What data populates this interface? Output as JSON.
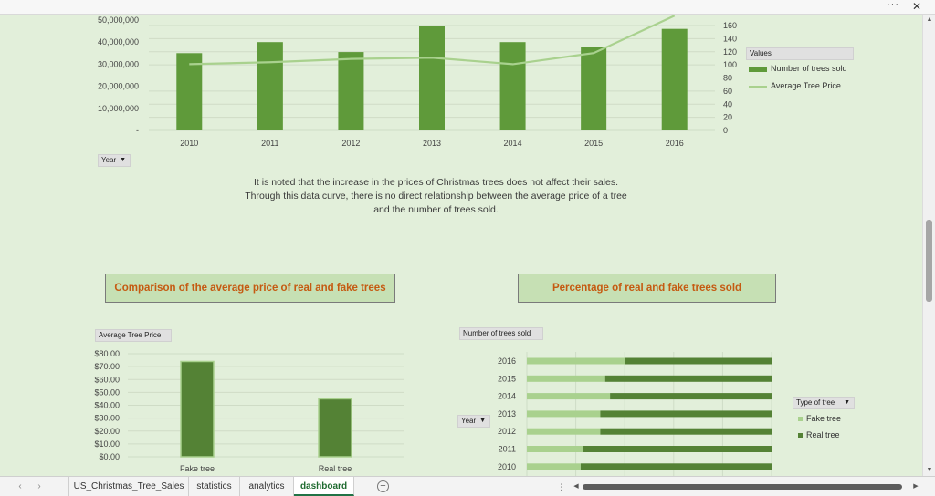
{
  "window": {
    "more_label": "···",
    "close_label": "✕"
  },
  "chart1": {
    "fields": {
      "values_label": "Values",
      "year_label": "Year"
    },
    "y_left_ticks": [
      "50,000,000",
      "40,000,000",
      "30,000,000",
      "20,000,000",
      "10,000,000",
      "-"
    ],
    "y_right_ticks": [
      "160",
      "140",
      "120",
      "100",
      "80",
      "60",
      "40",
      "20",
      "0"
    ],
    "legend": [
      {
        "label": "Number of trees sold",
        "color": "#5f9a3a"
      },
      {
        "label": "Average Tree Price",
        "color": "#a9d18e"
      }
    ]
  },
  "note": {
    "line1": "It is noted that the increase in the prices of Christmas trees does not affect their sales.",
    "line2": "Through this data curve, there is no direct relationship between the average price of a tree",
    "line3": "and the number of trees sold."
  },
  "box_left_title": "Comparison of the average price of real and fake trees",
  "box_right_title": "Percentage of real and fake trees sold",
  "chart2": {
    "field_label": "Average Tree Price",
    "y_ticks": [
      "$80.00",
      "$70.00",
      "$60.00",
      "$50.00",
      "$40.00",
      "$30.00",
      "$20.00",
      "$10.00",
      "$0.00"
    ]
  },
  "chart3": {
    "field_label": "Number of trees sold",
    "year_label": "Year",
    "legend_title": "Type of tree",
    "legend": [
      {
        "label": "Fake tree",
        "color": "#a9d18e"
      },
      {
        "label": "Real tree",
        "color": "#548235"
      }
    ]
  },
  "chart_data": [
    {
      "type": "bar",
      "categories": [
        "2010",
        "2011",
        "2012",
        "2013",
        "2014",
        "2015",
        "2016"
      ],
      "series": [
        {
          "name": "Number of trees sold",
          "values": [
            35000000,
            40000000,
            35500000,
            47500000,
            40000000,
            38000000,
            46000000
          ],
          "axis": "left",
          "color": "#5f9a3a"
        },
        {
          "name": "Average Tree Price",
          "type": "line",
          "values": [
            101,
            104,
            109,
            111,
            101,
            118,
            175
          ],
          "axis": "right",
          "color": "#a9d18e"
        }
      ],
      "ylim_left": [
        0,
        50000000
      ],
      "ylim_right": [
        0,
        160
      ],
      "grid": true,
      "legend": "right"
    },
    {
      "type": "bar",
      "categories": [
        "Fake tree",
        "Real tree"
      ],
      "values": [
        74,
        45
      ],
      "ylim": [
        0,
        80
      ],
      "grid": true,
      "legend": "none"
    },
    {
      "type": "bar",
      "orientation": "horizontal",
      "stacked_percent": true,
      "categories": [
        "2016",
        "2015",
        "2014",
        "2013",
        "2012",
        "2011",
        "2010"
      ],
      "series": [
        {
          "name": "Fake tree",
          "values": [
            40,
            32,
            34,
            30,
            30,
            23,
            22
          ],
          "color": "#a9d18e"
        },
        {
          "name": "Real tree",
          "values": [
            60,
            68,
            66,
            70,
            70,
            77,
            78
          ],
          "color": "#548235"
        }
      ],
      "xlim": [
        0,
        100
      ],
      "grid": true,
      "legend": "right"
    }
  ],
  "tabs": [
    {
      "label": "US_Christmas_Tree_Sales",
      "active": false
    },
    {
      "label": "statistics",
      "active": false
    },
    {
      "label": "analytics",
      "active": false
    },
    {
      "label": "dashboard",
      "active": true
    }
  ]
}
